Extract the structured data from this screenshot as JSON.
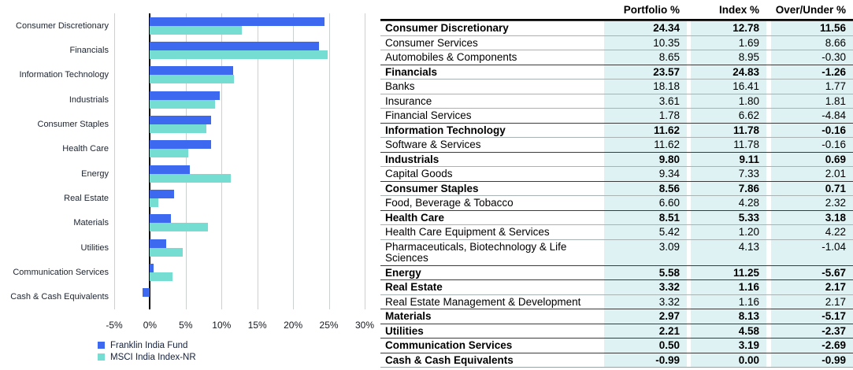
{
  "chart_data": {
    "type": "bar",
    "orientation": "horizontal",
    "title": "",
    "xlabel": "",
    "ylabel": "",
    "xlim": [
      -5,
      30
    ],
    "grid": true,
    "legend_position": "bottom-left",
    "x_ticks": [
      "-5%",
      "0%",
      "5%",
      "10%",
      "15%",
      "20%",
      "25%",
      "30%"
    ],
    "categories": [
      "Consumer Discretionary",
      "Financials",
      "Information Technology",
      "Industrials",
      "Consumer Staples",
      "Health Care",
      "Energy",
      "Real Estate",
      "Materials",
      "Utilities",
      "Communication Services",
      "Cash & Cash Equivalents"
    ],
    "series": [
      {
        "name": "Franklin India Fund",
        "color": "#3c69f0",
        "values": [
          24.34,
          23.57,
          11.62,
          9.8,
          8.56,
          8.51,
          5.58,
          3.32,
          2.97,
          2.21,
          0.5,
          -0.99
        ]
      },
      {
        "name": "MSCI India Index-NR",
        "color": "#75ddd2",
        "values": [
          12.78,
          24.83,
          11.78,
          9.11,
          7.86,
          5.33,
          11.25,
          1.16,
          8.13,
          4.58,
          3.19,
          0.0
        ]
      }
    ]
  },
  "table": {
    "shade_color": "#dff2f3",
    "columns": [
      "",
      "Portfolio %",
      "Index %",
      "Over/Under %"
    ],
    "rows": [
      {
        "label": "Consumer Discretionary",
        "bold": true,
        "portfolio": "24.34",
        "index": "12.78",
        "over_under": "11.56"
      },
      {
        "label": "Consumer Services",
        "bold": false,
        "portfolio": "10.35",
        "index": "1.69",
        "over_under": "8.66"
      },
      {
        "label": "Automobiles & Components",
        "bold": false,
        "portfolio": "8.65",
        "index": "8.95",
        "over_under": "-0.30"
      },
      {
        "label": "Financials",
        "bold": true,
        "portfolio": "23.57",
        "index": "24.83",
        "over_under": "-1.26"
      },
      {
        "label": "Banks",
        "bold": false,
        "portfolio": "18.18",
        "index": "16.41",
        "over_under": "1.77"
      },
      {
        "label": "Insurance",
        "bold": false,
        "portfolio": "3.61",
        "index": "1.80",
        "over_under": "1.81"
      },
      {
        "label": "Financial Services",
        "bold": false,
        "portfolio": "1.78",
        "index": "6.62",
        "over_under": "-4.84"
      },
      {
        "label": "Information Technology",
        "bold": true,
        "portfolio": "11.62",
        "index": "11.78",
        "over_under": "-0.16"
      },
      {
        "label": "Software & Services",
        "bold": false,
        "portfolio": "11.62",
        "index": "11.78",
        "over_under": "-0.16"
      },
      {
        "label": "Industrials",
        "bold": true,
        "portfolio": "9.80",
        "index": "9.11",
        "over_under": "0.69"
      },
      {
        "label": "Capital Goods",
        "bold": false,
        "portfolio": "9.34",
        "index": "7.33",
        "over_under": "2.01"
      },
      {
        "label": "Consumer Staples",
        "bold": true,
        "portfolio": "8.56",
        "index": "7.86",
        "over_under": "0.71"
      },
      {
        "label": "Food, Beverage & Tobacco",
        "bold": false,
        "portfolio": "6.60",
        "index": "4.28",
        "over_under": "2.32"
      },
      {
        "label": "Health Care",
        "bold": true,
        "portfolio": "8.51",
        "index": "5.33",
        "over_under": "3.18"
      },
      {
        "label": "Health Care Equipment & Services",
        "bold": false,
        "portfolio": "5.42",
        "index": "1.20",
        "over_under": "4.22"
      },
      {
        "label": "Pharmaceuticals, Biotechnology & Life Sciences",
        "bold": false,
        "portfolio": "3.09",
        "index": "4.13",
        "over_under": "-1.04"
      },
      {
        "label": "Energy",
        "bold": true,
        "portfolio": "5.58",
        "index": "11.25",
        "over_under": "-5.67"
      },
      {
        "label": "Real Estate",
        "bold": true,
        "portfolio": "3.32",
        "index": "1.16",
        "over_under": "2.17"
      },
      {
        "label": "Real Estate Management & Development",
        "bold": false,
        "portfolio": "3.32",
        "index": "1.16",
        "over_under": "2.17"
      },
      {
        "label": "Materials",
        "bold": true,
        "portfolio": "2.97",
        "index": "8.13",
        "over_under": "-5.17"
      },
      {
        "label": "Utilities",
        "bold": true,
        "portfolio": "2.21",
        "index": "4.58",
        "over_under": "-2.37"
      },
      {
        "label": "Communication Services",
        "bold": true,
        "portfolio": "0.50",
        "index": "3.19",
        "over_under": "-2.69"
      },
      {
        "label": "Cash & Cash Equivalents",
        "bold": true,
        "portfolio": "-0.99",
        "index": "0.00",
        "over_under": "-0.99"
      }
    ]
  }
}
